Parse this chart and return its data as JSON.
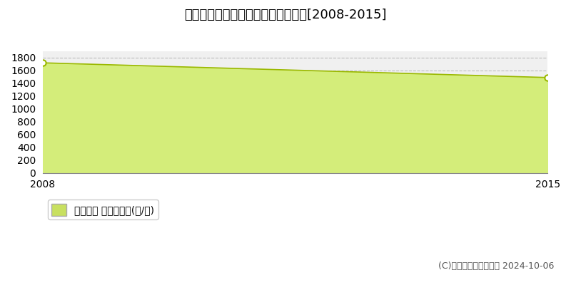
{
  "title": "鵳珠郡能登町十郎原　林地価格推移[2008-2015]",
  "years": [
    2008,
    2015
  ],
  "values": [
    1720,
    1490
  ],
  "ylim": [
    0,
    1900
  ],
  "yticks": [
    0,
    200,
    400,
    600,
    800,
    1000,
    1200,
    1400,
    1600,
    1800
  ],
  "line_color": "#9ab800",
  "fill_color": "#d4ed7a",
  "fill_alpha": 1.0,
  "marker_color": "#9ab800",
  "marker_face": "white",
  "marker_size": 6,
  "marker_style": "o",
  "grid_color": "#bbbbbb",
  "grid_style": "--",
  "bg_color": "#f0f0f0",
  "legend_label": "林地価格 平均嵪単価(円/嵪)",
  "legend_marker_color": "#c8e060",
  "copyright": "(C)土地価格ドットコム 2024-10-06",
  "title_fontsize": 13,
  "tick_fontsize": 10,
  "legend_fontsize": 10,
  "copyright_fontsize": 9,
  "xlim": [
    2008,
    2015
  ],
  "xticks": [
    2008,
    2015
  ]
}
